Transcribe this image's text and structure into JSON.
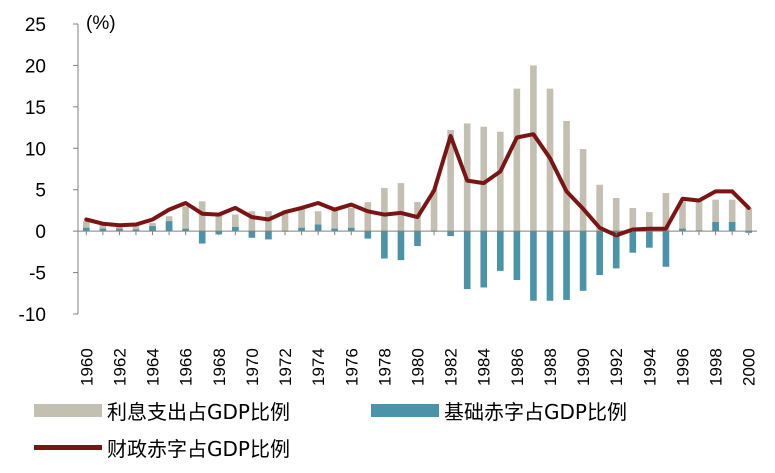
{
  "chart_data": {
    "type": "bar+line",
    "unit_label": "(%)",
    "ylim": [
      -10,
      25
    ],
    "yticks": [
      25,
      20,
      15,
      10,
      5,
      0,
      -5,
      -10
    ],
    "years": [
      1960,
      1961,
      1962,
      1963,
      1964,
      1965,
      1966,
      1967,
      1968,
      1969,
      1970,
      1971,
      1972,
      1973,
      1974,
      1975,
      1976,
      1977,
      1978,
      1979,
      1980,
      1981,
      1982,
      1983,
      1984,
      1985,
      1986,
      1987,
      1988,
      1989,
      1990,
      1991,
      1992,
      1993,
      1994,
      1995,
      1996,
      1997,
      1998,
      1999,
      2000
    ],
    "xtick_labels": [
      "1960",
      "1962",
      "1964",
      "1966",
      "1968",
      "1970",
      "1972",
      "1974",
      "1976",
      "1978",
      "1980",
      "1982",
      "1984",
      "1986",
      "1988",
      "1990",
      "1992",
      "1994",
      "1996",
      "1998",
      "2000"
    ],
    "series": [
      {
        "name": "利息支出占GDP比例",
        "type": "bar",
        "color": "#c4c0b1",
        "values": [
          1.2,
          0.8,
          0.6,
          0.7,
          1.0,
          1.8,
          3.0,
          3.6,
          2.0,
          2.0,
          2.4,
          2.4,
          2.5,
          2.7,
          2.4,
          2.7,
          2.8,
          3.5,
          5.2,
          5.8,
          3.5,
          5.0,
          12.2,
          13.0,
          12.6,
          12.0,
          17.2,
          20.0,
          17.2,
          13.3,
          9.9,
          5.6,
          4.0,
          2.8,
          2.3,
          4.6,
          3.6,
          3.8,
          3.8,
          3.8,
          2.8
        ]
      },
      {
        "name": "基础赤字占GDP比例",
        "type": "bar",
        "color": "#4b93a8",
        "values": [
          0.4,
          0.3,
          0.3,
          0.2,
          0.6,
          1.2,
          0.3,
          -1.5,
          -0.4,
          0.5,
          -0.8,
          -1.0,
          0.0,
          0.4,
          0.8,
          0.3,
          0.4,
          -0.9,
          -3.3,
          -3.5,
          -1.8,
          0.0,
          -0.6,
          -7.0,
          -6.8,
          -4.8,
          -5.9,
          -8.4,
          -8.4,
          -8.3,
          -7.2,
          -5.3,
          -4.5,
          -2.6,
          -2.0,
          -4.3,
          0.3,
          0.1,
          1.1,
          1.1,
          -0.2
        ]
      },
      {
        "name": "财政赤字占GDP比例",
        "type": "line",
        "color": "#7b1414",
        "values": [
          1.4,
          0.9,
          0.7,
          0.8,
          1.4,
          2.6,
          3.4,
          2.1,
          2.0,
          2.8,
          1.7,
          1.4,
          2.3,
          2.8,
          3.4,
          2.6,
          3.2,
          2.4,
          2.0,
          2.2,
          1.7,
          4.9,
          11.5,
          6.1,
          5.8,
          7.2,
          11.3,
          11.7,
          8.8,
          4.8,
          2.7,
          0.4,
          -0.5,
          0.2,
          0.3,
          0.3,
          3.9,
          3.7,
          4.8,
          4.8,
          2.8
        ]
      }
    ]
  }
}
